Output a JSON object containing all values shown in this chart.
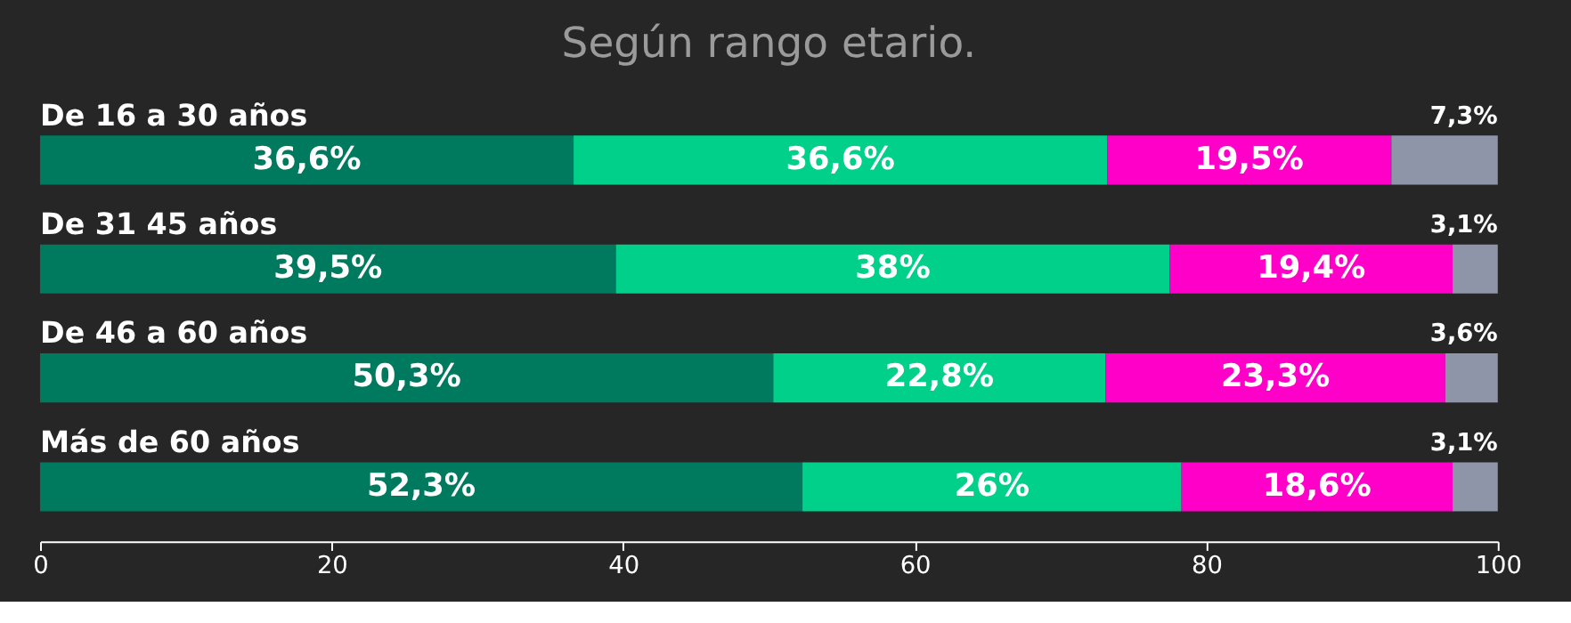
{
  "chart_data": {
    "type": "bar",
    "orientation": "horizontal",
    "stacked": true,
    "title": "Según rango etario.",
    "categories": [
      "De 16 a 30 años",
      "De 31 45 años",
      "De 46 a 60 años",
      "Más de 60 años"
    ],
    "series": [
      {
        "color": "#007a5e",
        "values": [
          36.6,
          39.5,
          50.3,
          52.3
        ],
        "value_labels": [
          "36,6%",
          "39,5%",
          "50,3%",
          "52,3%"
        ]
      },
      {
        "color": "#00d08a",
        "values": [
          36.6,
          38,
          22.8,
          26
        ],
        "value_labels": [
          "36,6%",
          "38%",
          "22,8%",
          "26%"
        ]
      },
      {
        "color": "#ff00c8",
        "values": [
          19.5,
          19.4,
          23.3,
          18.6
        ],
        "value_labels": [
          "19,5%",
          "19,4%",
          "23,3%",
          "18,6%"
        ]
      },
      {
        "color": "#8e95a8",
        "values": [
          7.3,
          3.1,
          3.6,
          3.1
        ],
        "value_labels": [
          "7,3%",
          "3,1%",
          "3,6%",
          "3,1%"
        ]
      }
    ],
    "xlim": [
      0,
      100
    ],
    "xticks": [
      0,
      20,
      40,
      60,
      80,
      100
    ],
    "grid": false
  }
}
